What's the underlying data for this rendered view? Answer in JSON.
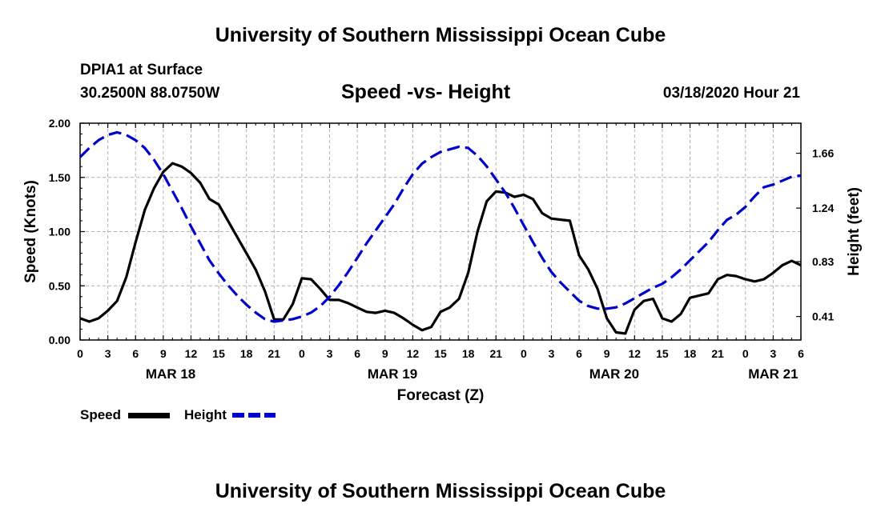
{
  "header": {
    "title_top": "University of Southern Mississippi Ocean Cube",
    "title_bottom": "University of Southern Mississippi Ocean Cube",
    "station": "DPIA1 at Surface",
    "coords": "30.2500N 88.0750W",
    "subtitle": "Speed -vs- Height",
    "datetime": "03/18/2020 Hour 21"
  },
  "legend": {
    "speed_label": "Speed",
    "height_label": "Height"
  },
  "colors": {
    "speed": "#000000",
    "height": "#0000cc",
    "grid": "#b0b0b0"
  },
  "chart_data": {
    "type": "line",
    "title": "Speed -vs- Height",
    "xlabel": "Forecast (Z)",
    "ylabel": "Speed (Knots)",
    "y2label": "Height (feet)",
    "xlim": [
      0,
      78
    ],
    "ylim": [
      0,
      2.0
    ],
    "y2lim": [
      0.23,
      1.89
    ],
    "x_ticks": [
      0,
      3,
      6,
      9,
      12,
      15,
      18,
      21,
      24,
      27,
      30,
      33,
      36,
      39,
      42,
      45,
      48,
      51,
      54,
      57,
      60,
      63,
      66,
      69,
      72,
      75,
      78
    ],
    "x_tick_labels": [
      "0",
      "3",
      "6",
      "9",
      "12",
      "15",
      "18",
      "21",
      "0",
      "3",
      "6",
      "9",
      "12",
      "15",
      "18",
      "21",
      "0",
      "3",
      "6",
      "9",
      "12",
      "15",
      "18",
      "21",
      "0",
      "3",
      "6"
    ],
    "date_labels": [
      {
        "text": "MAR 18",
        "x": 9.8
      },
      {
        "text": "MAR 19",
        "x": 33.8
      },
      {
        "text": "MAR 20",
        "x": 57.8
      },
      {
        "text": "MAR 21",
        "x": 75
      }
    ],
    "y_ticks": [
      0.0,
      0.5,
      1.0,
      1.5,
      2.0
    ],
    "y_tick_labels": [
      "0.00",
      "0.50",
      "1.00",
      "1.50",
      "2.00"
    ],
    "y2_ticks": [
      0.41,
      0.83,
      1.24,
      1.66
    ],
    "y2_tick_labels": [
      "0.41",
      "0.83",
      "1.24",
      "1.66"
    ],
    "grid": true,
    "series": [
      {
        "name": "Speed",
        "axis": "left",
        "style": "solid",
        "x": [
          0,
          1,
          2,
          3,
          4,
          5,
          6,
          7,
          8,
          9,
          10,
          11,
          12,
          13,
          14,
          15,
          16,
          17,
          18,
          19,
          20,
          21,
          22,
          23,
          24,
          25,
          26,
          27,
          28,
          29,
          30,
          31,
          32,
          33,
          34,
          35,
          36,
          37,
          38,
          39,
          40,
          41,
          42,
          43,
          44,
          45,
          46,
          47,
          48,
          49,
          50,
          51,
          52,
          53,
          54,
          55,
          56,
          57,
          58,
          59,
          60,
          61,
          62,
          63,
          64,
          65,
          66,
          67,
          68,
          69,
          70,
          71,
          72,
          73,
          74,
          75,
          76,
          77,
          78
        ],
        "y": [
          0.2,
          0.17,
          0.2,
          0.27,
          0.36,
          0.58,
          0.9,
          1.2,
          1.4,
          1.55,
          1.63,
          1.6,
          1.54,
          1.45,
          1.3,
          1.25,
          1.1,
          0.95,
          0.8,
          0.65,
          0.45,
          0.19,
          0.19,
          0.33,
          0.57,
          0.56,
          0.47,
          0.37,
          0.37,
          0.34,
          0.3,
          0.26,
          0.25,
          0.27,
          0.25,
          0.2,
          0.14,
          0.09,
          0.12,
          0.26,
          0.3,
          0.38,
          0.62,
          1.0,
          1.28,
          1.37,
          1.36,
          1.32,
          1.34,
          1.3,
          1.17,
          1.12,
          1.11,
          1.1,
          0.78,
          0.65,
          0.47,
          0.2,
          0.07,
          0.06,
          0.28,
          0.36,
          0.38,
          0.2,
          0.17,
          0.24,
          0.39,
          0.41,
          0.43,
          0.56,
          0.6,
          0.59,
          0.56,
          0.54,
          0.56,
          0.62,
          0.69,
          0.73,
          0.69
        ]
      },
      {
        "name": "Height",
        "axis": "right",
        "style": "dashed",
        "x": [
          0,
          1,
          2,
          3,
          4,
          5,
          6,
          7,
          8,
          9,
          10,
          11,
          12,
          13,
          14,
          15,
          16,
          17,
          18,
          19,
          20,
          21,
          22,
          23,
          24,
          25,
          26,
          27,
          28,
          29,
          30,
          31,
          32,
          33,
          34,
          35,
          36,
          37,
          38,
          39,
          40,
          41,
          42,
          43,
          44,
          45,
          46,
          47,
          48,
          49,
          50,
          51,
          52,
          53,
          54,
          55,
          56,
          57,
          58,
          59,
          60,
          61,
          62,
          63,
          64,
          65,
          66,
          67,
          68,
          69,
          70,
          71,
          72,
          73,
          74,
          75,
          76,
          77,
          78
        ],
        "y": [
          1.63,
          1.7,
          1.76,
          1.8,
          1.82,
          1.8,
          1.76,
          1.7,
          1.61,
          1.5,
          1.37,
          1.24,
          1.1,
          0.97,
          0.84,
          0.74,
          0.65,
          0.57,
          0.5,
          0.44,
          0.39,
          0.37,
          0.38,
          0.39,
          0.41,
          0.44,
          0.49,
          0.56,
          0.65,
          0.75,
          0.86,
          0.97,
          1.07,
          1.17,
          1.27,
          1.39,
          1.5,
          1.58,
          1.63,
          1.67,
          1.69,
          1.71,
          1.7,
          1.64,
          1.56,
          1.46,
          1.36,
          1.24,
          1.11,
          0.98,
          0.86,
          0.75,
          0.67,
          0.6,
          0.53,
          0.49,
          0.47,
          0.47,
          0.48,
          0.51,
          0.55,
          0.59,
          0.63,
          0.66,
          0.71,
          0.77,
          0.84,
          0.91,
          0.98,
          1.07,
          1.15,
          1.19,
          1.25,
          1.33,
          1.4,
          1.42,
          1.45,
          1.48,
          1.49
        ]
      }
    ]
  }
}
